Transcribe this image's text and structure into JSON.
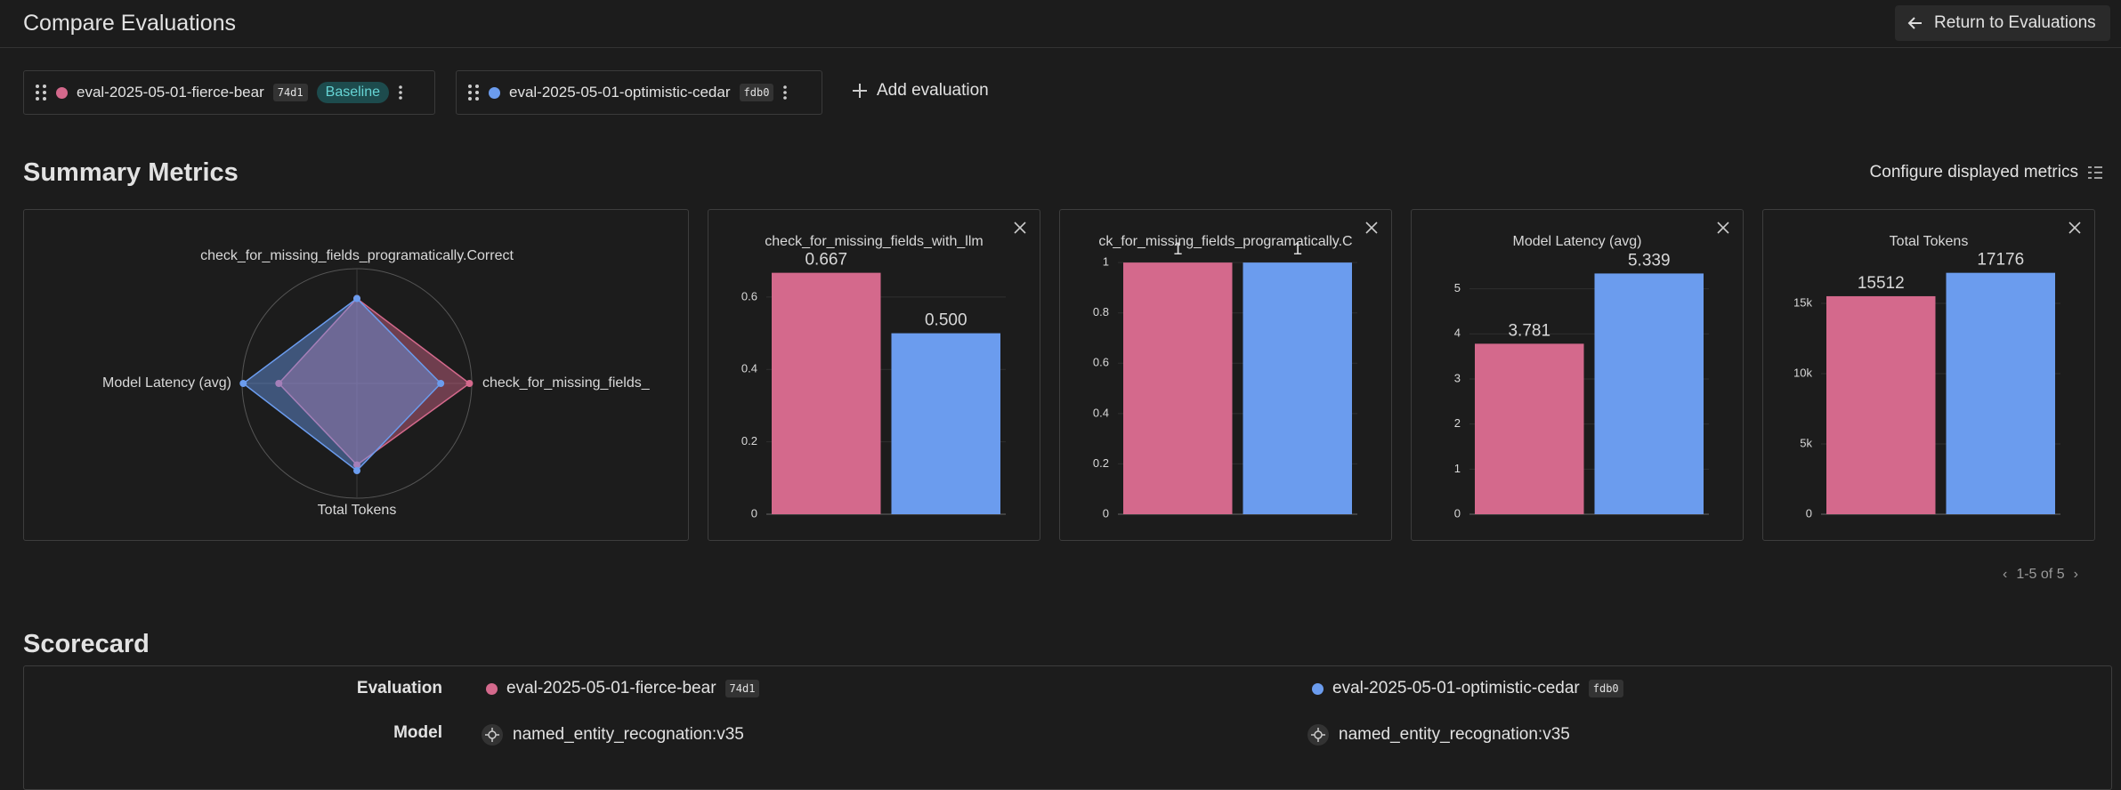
{
  "header": {
    "title": "Compare Evaluations",
    "return_button": "Return to Evaluations"
  },
  "evaluations": [
    {
      "name": "eval-2025-05-01-fierce-bear",
      "hash": "74d1",
      "color": "#d4698c"
    },
    {
      "name": "eval-2025-05-01-optimistic-cedar",
      "hash": "fdb0",
      "color": "#6b9cee"
    }
  ],
  "baseline_badge": "Baseline",
  "add_evaluation": "Add evaluation",
  "summary": {
    "title": "Summary Metrics",
    "configure": "Configure displayed metrics",
    "pagination": "1-5 of 5"
  },
  "chart_data": [
    {
      "type": "radar",
      "categories": [
        "check_for_missing_fields_programatically.Correct",
        "check_for_missing_fields_",
        "Total Tokens",
        "Model Latency (avg)"
      ],
      "rlim": [
        0,
        1
      ],
      "series": [
        {
          "color": "#d4698c",
          "values": [
            0.74,
            0.98,
            0.71,
            0.68
          ]
        },
        {
          "color": "#6b9cee",
          "values": [
            0.74,
            0.73,
            0.76,
            0.99
          ]
        }
      ]
    },
    {
      "type": "bar",
      "title": "check_for_missing_fields_with_llm",
      "values": [
        0.667,
        0.5
      ],
      "value_labels": [
        "0.667",
        "0.500"
      ],
      "colors": [
        "#d4698c",
        "#6b9cee"
      ],
      "ylim": [
        0,
        0.73
      ],
      "yticks": [
        0,
        0.2,
        0.4,
        0.6
      ]
    },
    {
      "type": "bar",
      "title": "ck_for_missing_fields_programatically.C",
      "values": [
        1,
        1
      ],
      "colors": [
        "#d4698c",
        "#6b9cee"
      ],
      "ylim": [
        0,
        1.05
      ],
      "yticks": [
        0,
        0.2,
        0.4,
        0.6,
        0.8,
        1
      ]
    },
    {
      "type": "bar",
      "title": "Model Latency (avg)",
      "values": [
        3.781,
        5.339
      ],
      "colors": [
        "#d4698c",
        "#6b9cee"
      ],
      "ylim": [
        0,
        5.86
      ],
      "yticks": [
        0,
        1,
        2,
        3,
        4,
        5
      ]
    },
    {
      "type": "bar",
      "title": "Total Tokens",
      "values": [
        15512,
        17176
      ],
      "colors": [
        "#d4698c",
        "#6b9cee"
      ],
      "ylim": [
        0,
        18800
      ],
      "yticks": [
        0,
        {
          "value": 5000,
          "label": "5k"
        },
        {
          "value": 10000,
          "label": "10k"
        },
        {
          "value": 15000,
          "label": "15k"
        }
      ]
    }
  ],
  "scorecard": {
    "title": "Scorecard",
    "evaluation_label": "Evaluation",
    "model_label": "Model",
    "models": [
      "named_entity_recognation:v35",
      "named_entity_recognation:v35"
    ]
  }
}
